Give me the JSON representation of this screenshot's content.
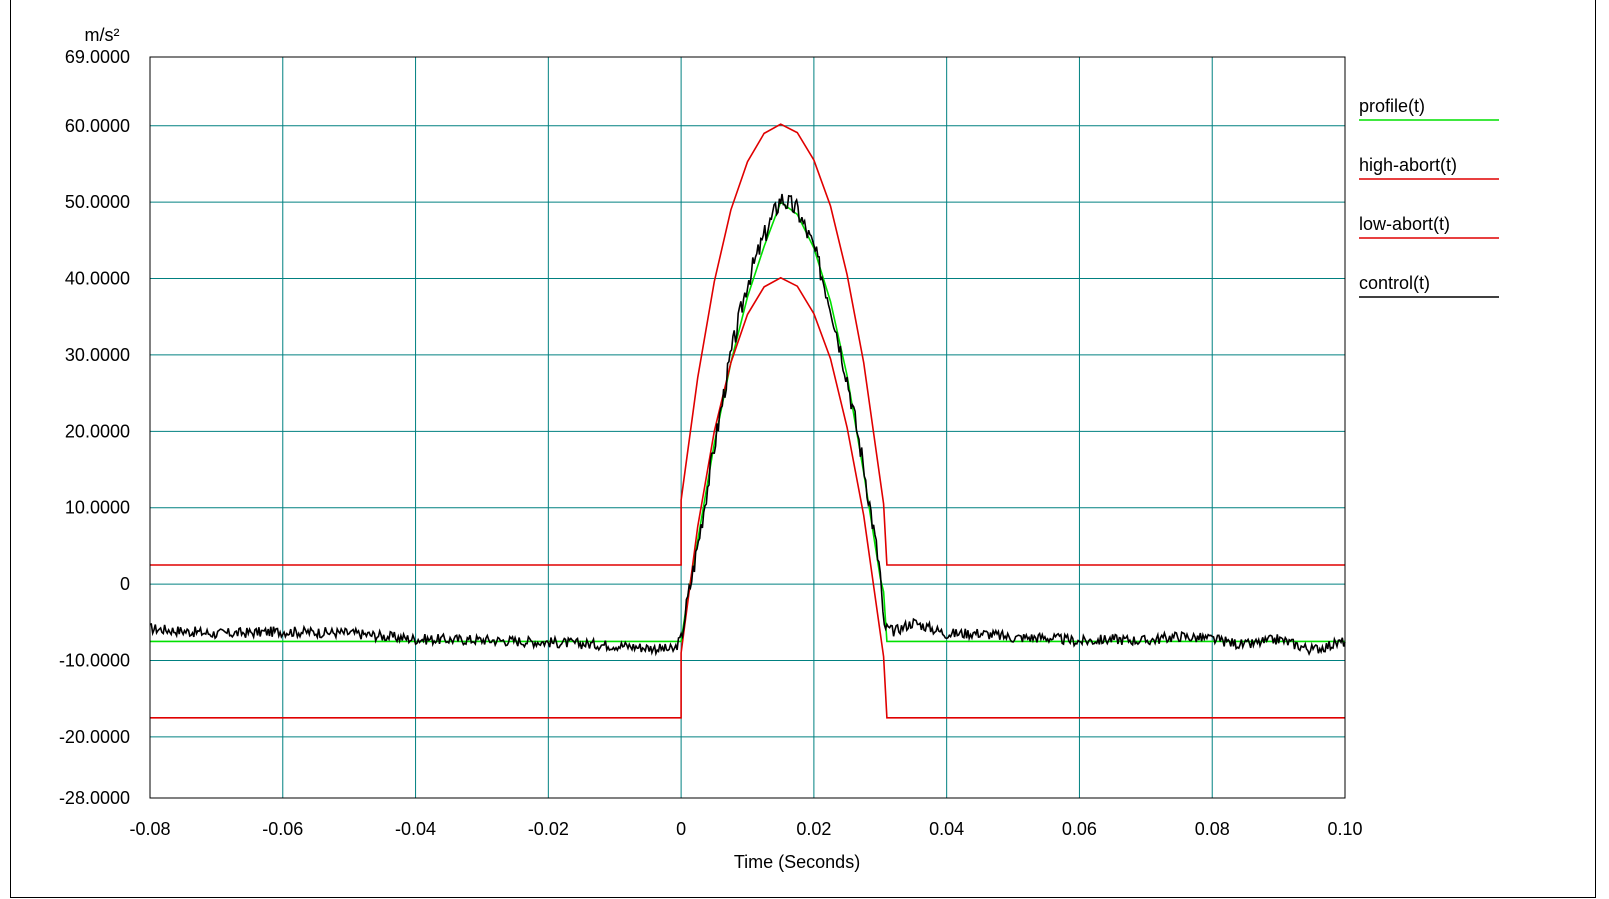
{
  "chart_data": {
    "type": "line",
    "title": "",
    "xlabel": "Time (Seconds)",
    "ylabel": "m/s²",
    "xlim": [
      -0.08,
      0.1
    ],
    "ylim": [
      -28.0,
      69.0
    ],
    "x_ticks": [
      -0.08,
      -0.06,
      -0.04,
      -0.02,
      0,
      0.02,
      0.04,
      0.06,
      0.08,
      0.1
    ],
    "x_tick_labels": [
      "-0.08",
      "-0.06",
      "-0.04",
      "-0.02",
      "0",
      "0.02",
      "0.04",
      "0.06",
      "0.08",
      "0.10"
    ],
    "y_ticks": [
      -28,
      -20,
      -10,
      0,
      10,
      20,
      30,
      40,
      50,
      60,
      69
    ],
    "y_tick_labels": [
      "-28.0000",
      "-20.0000",
      "-10.0000",
      "0",
      "10.0000",
      "20.0000",
      "30.0000",
      "40.0000",
      "50.0000",
      "60.0000",
      "69.0000"
    ],
    "grid": true,
    "legend_position": "right",
    "series": [
      {
        "name": "profile(t)",
        "color": "#00e000",
        "x": [
          -0.08,
          0,
          0.001,
          0.0025,
          0.005,
          0.0075,
          0.01,
          0.0125,
          0.015,
          0.0175,
          0.02,
          0.0225,
          0.025,
          0.0275,
          0.03,
          0.0305,
          0.031,
          0.1
        ],
        "y": [
          -7.5,
          -7.5,
          -1.6,
          5.7,
          18.4,
          29.0,
          37.6,
          44.2,
          50.0,
          48.4,
          44.0,
          37.0,
          27.3,
          14.6,
          0.8,
          -1.0,
          -7.5,
          -7.5
        ]
      },
      {
        "name": "high-abort(t)",
        "color": "#e00000",
        "x": [
          -0.08,
          0,
          0,
          0.0025,
          0.005,
          0.0075,
          0.01,
          0.0125,
          0.015,
          0.0175,
          0.02,
          0.0225,
          0.025,
          0.0275,
          0.0305,
          0.031,
          0.1
        ],
        "y": [
          2.5,
          2.5,
          11.0,
          27.0,
          39.6,
          49.0,
          55.3,
          59.0,
          60.2,
          59.1,
          55.5,
          49.5,
          40.5,
          29.0,
          10.5,
          2.5,
          2.5
        ]
      },
      {
        "name": "low-abort(t)",
        "color": "#e00000",
        "x": [
          -0.08,
          0,
          0,
          0.0025,
          0.005,
          0.0075,
          0.01,
          0.0125,
          0.015,
          0.0175,
          0.02,
          0.0225,
          0.025,
          0.0275,
          0.0305,
          0.031,
          0.1
        ],
        "y": [
          -17.5,
          -17.5,
          -9.0,
          7.5,
          20.0,
          29.0,
          35.3,
          38.9,
          40.1,
          39.0,
          35.4,
          29.5,
          20.5,
          9.0,
          -9.5,
          -17.5,
          -17.5
        ]
      },
      {
        "name": "control(t)",
        "color": "#000000",
        "x": [
          -0.08,
          -0.07,
          -0.06,
          -0.05,
          -0.04,
          -0.03,
          -0.02,
          -0.01,
          -0.001,
          0,
          0.001,
          0.0025,
          0.005,
          0.0075,
          0.01,
          0.0125,
          0.015,
          0.0175,
          0.02,
          0.0225,
          0.025,
          0.0275,
          0.03,
          0.0305,
          0.032,
          0.035,
          0.04,
          0.045,
          0.05,
          0.055,
          0.06,
          0.065,
          0.07,
          0.075,
          0.08,
          0.085,
          0.09,
          0.095,
          0.1
        ],
        "y": [
          -5.8,
          -6.5,
          -6.2,
          -6.4,
          -7.2,
          -7.3,
          -7.6,
          -8.0,
          -8.6,
          -7.0,
          -2.0,
          5.0,
          18.0,
          30.0,
          39.5,
          45.5,
          50.5,
          49.0,
          44.0,
          36.5,
          27.0,
          15.5,
          1.5,
          -5.5,
          -6.2,
          -5.0,
          -6.5,
          -6.4,
          -7.0,
          -7.0,
          -7.5,
          -7.2,
          -7.4,
          -6.8,
          -7.2,
          -8.0,
          -7.2,
          -8.6,
          -7.5
        ]
      }
    ]
  }
}
